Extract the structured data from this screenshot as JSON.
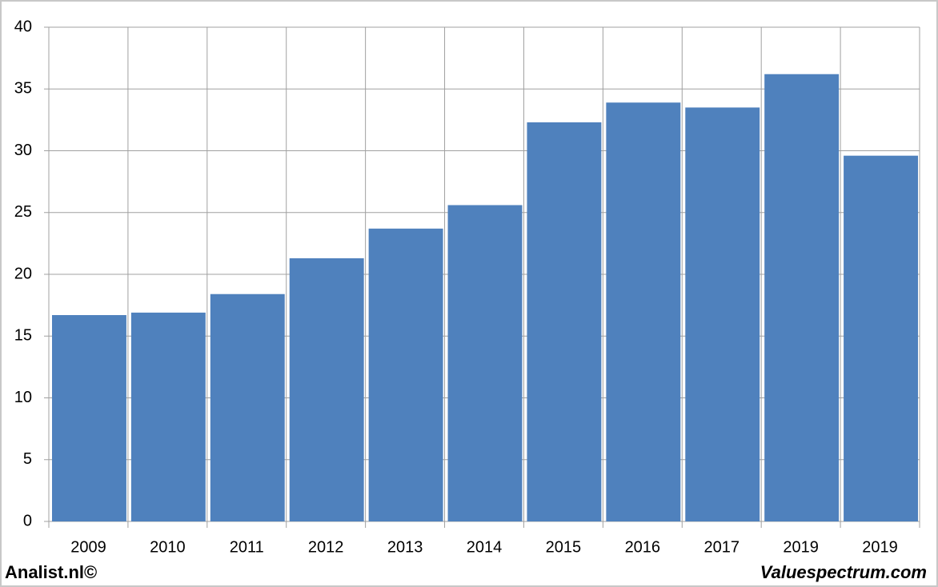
{
  "chart_data": {
    "type": "bar",
    "categories": [
      "2009",
      "2010",
      "2011",
      "2012",
      "2013",
      "2014",
      "2015",
      "2016",
      "2017",
      "2019",
      "2019"
    ],
    "values": [
      16.7,
      16.9,
      18.4,
      21.3,
      23.7,
      25.6,
      32.3,
      33.9,
      33.5,
      36.2,
      29.6
    ],
    "color": "#4f81bd",
    "ylim": [
      0,
      40
    ],
    "yticks": [
      0,
      5,
      10,
      15,
      20,
      25,
      30,
      35,
      40
    ],
    "grid": true
  },
  "footer": {
    "left": "Analist.nl©",
    "right": "Valuespectrum.com"
  }
}
